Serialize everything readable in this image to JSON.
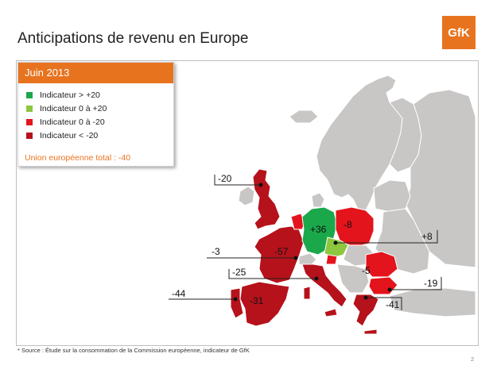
{
  "title": "Anticipations de revenu en Europe",
  "logo_text": "GfK",
  "legend": {
    "header": "Juin 2013",
    "items": [
      {
        "label": "Indicateur > +20",
        "color": "#1aa84a"
      },
      {
        "label": "Indicateur 0 à +20",
        "color": "#8dc63f"
      },
      {
        "label": "Indicateur 0 à -20",
        "color": "#e3141b"
      },
      {
        "label": "Indicateur < -20",
        "color": "#b5121b"
      }
    ],
    "total": "Union européenne total : -40"
  },
  "values": {
    "uk": "-20",
    "france": "-57",
    "germany": "+36",
    "poland": "-8",
    "austria": "+8",
    "romania": "-5",
    "bulgaria": "-19",
    "greece": "-41",
    "spain": "-31",
    "portugal": "-44",
    "belgium": "-3",
    "italy": "-25"
  },
  "footnote": "* Source : Étude sur la consommation de la Commission européenne, indicateur de GfK",
  "page_number": "2"
}
